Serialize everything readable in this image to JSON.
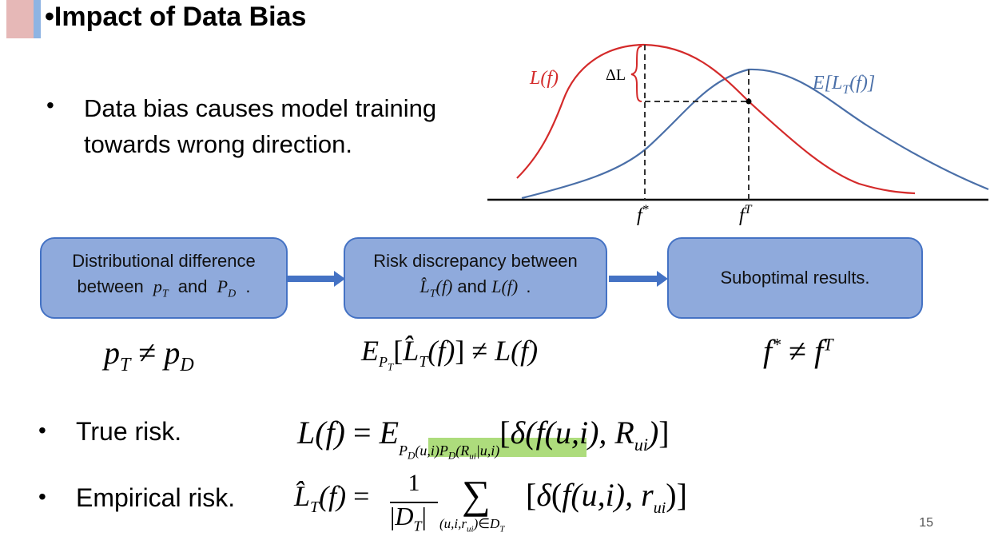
{
  "slide": {
    "title": "Impact of Data Bias",
    "page_number": "15",
    "bullet_main": "Data bias causes model training towards wrong direction.",
    "bullet_main_line1": "Data bias causes model training",
    "bullet_main_line2": "towards wrong direction."
  },
  "figure": {
    "curve_red_label": "L(f)",
    "curve_blue_label": "E[L_T(f)]",
    "delta_label": "ΔL",
    "x_star_label": "f*",
    "x_t_label": "fT",
    "colors": {
      "red_curve": "#d42a2a",
      "blue_curve": "#4a6fa8",
      "axis": "#000000"
    }
  },
  "flow": {
    "box1": {
      "line1": "Distributional difference",
      "line2_prefix": "between",
      "sym_a": "pT",
      "mid": "and",
      "sym_b": "PD",
      "suffix": "."
    },
    "box2": {
      "line1": "Risk discrepancy between",
      "sym_a": "L̂T(f)",
      "mid": "and",
      "sym_b": "L(f)",
      "suffix": "."
    },
    "box3": {
      "label": "Suboptimal results."
    },
    "colors": {
      "box_fill": "#8faadc",
      "box_border": "#4472c4",
      "arrow": "#4472c4"
    }
  },
  "formulas_under_boxes": {
    "f1": "pT ≠ pD",
    "f2": "EPT[L̂T(f)] ≠ L(f)",
    "f3": "f* ≠ fT"
  },
  "risks": {
    "true_label": "True risk.",
    "empirical_label": "Empirical risk.",
    "true_formula": "L(f) = E_{P_D(u,i)P_D(R_ui|u,i)}[δ(f(u,i), R_ui)]",
    "empirical_formula": "L̂_T(f) = 1/|D_T| Σ_{(u,i,r_ui)∈D_T} [δ(f(u,i), r_ui)]",
    "highlight_color": "#92d050"
  }
}
